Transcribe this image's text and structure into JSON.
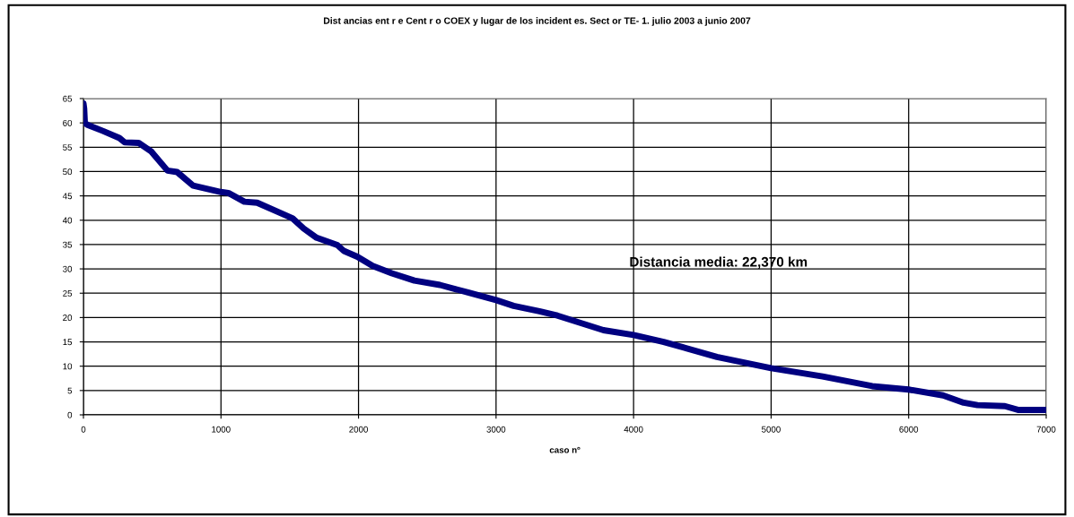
{
  "chart_data": {
    "type": "line",
    "title": "Dist ancias ent r e Cent r o COEX y lugar de los incident es. Sect or TE- 1. julio 2003 a junio 2007",
    "xlabel": "caso nº",
    "series": [
      {
        "color": "#000080",
        "x": [
          0,
          5,
          10,
          28,
          145,
          261,
          300,
          401,
          494,
          611,
          681,
          797,
          1000,
          1054,
          1170,
          1263,
          1520,
          1601,
          1695,
          1846,
          1893,
          1991,
          2103,
          2242,
          2406,
          2592,
          2802,
          3000,
          3128,
          3315,
          3446,
          3781,
          4000,
          4219,
          4606,
          5000,
          5374,
          5735,
          6000,
          6250,
          6400,
          6500,
          6700,
          6800,
          7000
        ],
        "values": [
          64,
          63,
          60,
          59.6,
          58.3,
          56.9,
          56.0,
          55.9,
          54.1,
          50.2,
          49.9,
          47.1,
          45.8,
          45.6,
          43.8,
          43.6,
          40.4,
          38.3,
          36.4,
          34.9,
          33.7,
          32.5,
          30.6,
          29.1,
          27.6,
          26.7,
          25.1,
          23.6,
          22.4,
          21.3,
          20.4,
          17.4,
          16.4,
          15.0,
          11.9,
          9.6,
          7.9,
          5.9,
          5.2,
          4,
          2.5,
          2,
          1.8,
          1,
          1
        ]
      }
    ],
    "xlim": [
      0,
      7000
    ],
    "xticks": [
      0,
      1000,
      2000,
      3000,
      4000,
      5000,
      6000,
      7000
    ],
    "ylim": [
      0,
      65
    ],
    "yticks": [
      0,
      5,
      10,
      15,
      20,
      25,
      30,
      35,
      40,
      45,
      50,
      55,
      60,
      65
    ],
    "grid": true,
    "marker": "none",
    "line_style": "solid",
    "annotations": [
      "Distancia media: 22,370 km"
    ]
  }
}
